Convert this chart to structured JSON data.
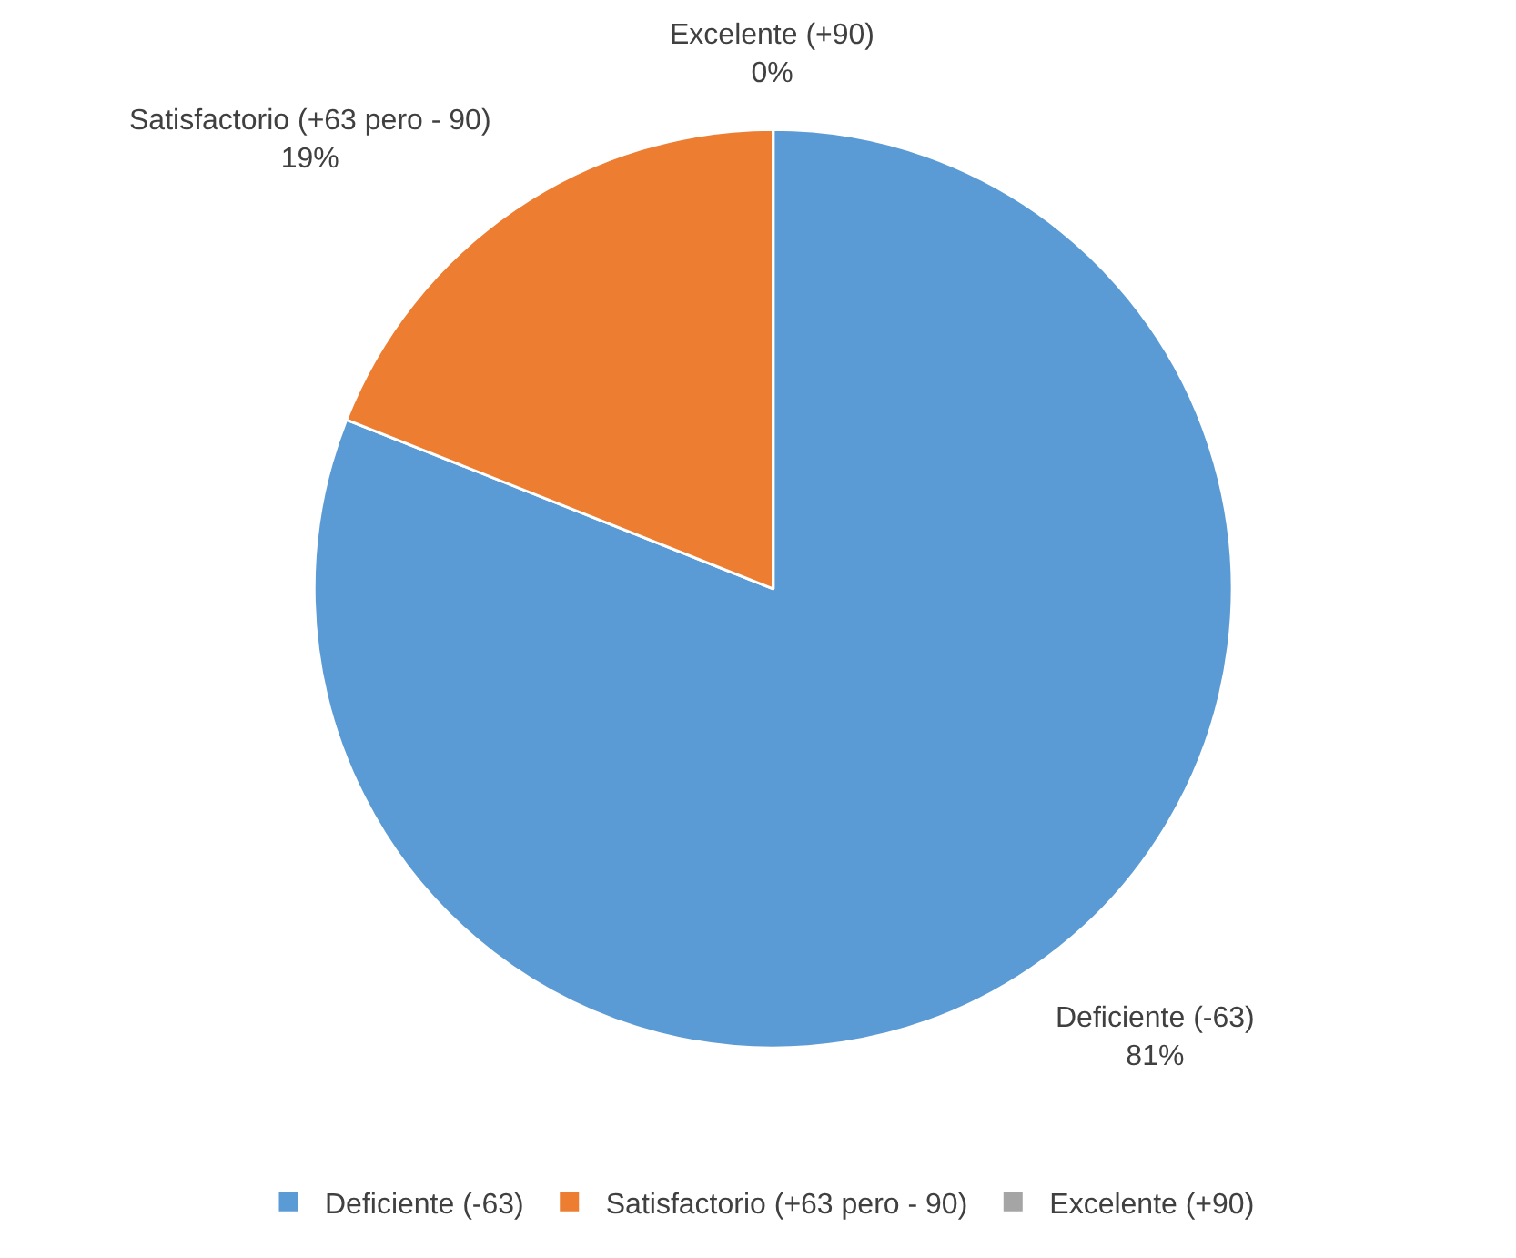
{
  "chart_data": {
    "type": "pie",
    "categories": [
      "Deficiente (-63)",
      "Satisfactorio (+63 pero - 90)",
      "Excelente (+90)"
    ],
    "values": [
      81,
      19,
      0
    ],
    "colors": [
      "#5b9bd5",
      "#ed7d31",
      "#a5a5a5"
    ],
    "value_labels": [
      "81%",
      "19%",
      "0%"
    ],
    "legend": "bottom"
  }
}
